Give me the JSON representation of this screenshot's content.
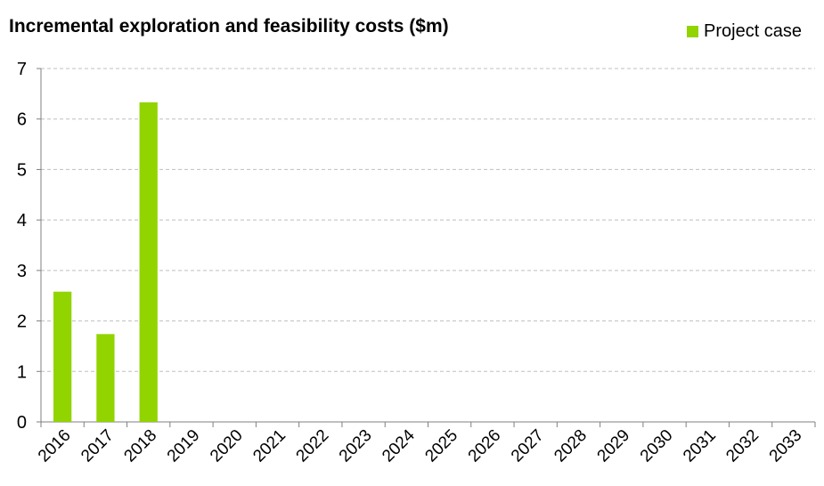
{
  "chart_data": {
    "type": "bar",
    "title": "Incremental exploration and feasibility costs ($m)",
    "xlabel": "",
    "ylabel": "",
    "categories": [
      "2016",
      "2017",
      "2018",
      "2019",
      "2020",
      "2021",
      "2022",
      "2023",
      "2024",
      "2025",
      "2026",
      "2027",
      "2028",
      "2029",
      "2030",
      "2031",
      "2032",
      "2033"
    ],
    "series": [
      {
        "name": "Project case",
        "color": "#92d400",
        "values": [
          2.58,
          1.74,
          6.33,
          0,
          0,
          0,
          0,
          0,
          0,
          0,
          0,
          0,
          0,
          0,
          0,
          0,
          0,
          0
        ]
      }
    ],
    "ylim": [
      0,
      7
    ],
    "yticks": [
      0,
      1,
      2,
      3,
      4,
      5,
      6,
      7
    ],
    "grid": true,
    "legend_position": "top-right"
  }
}
